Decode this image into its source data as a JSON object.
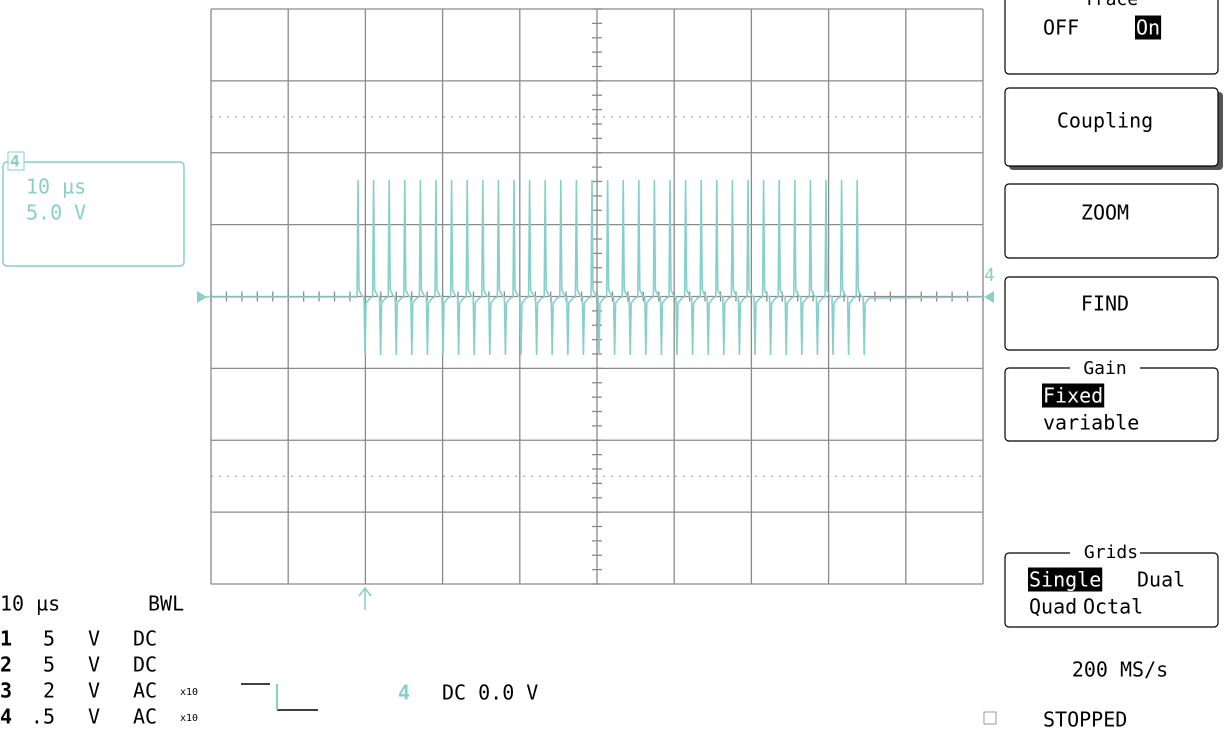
{
  "menu": {
    "trace": {
      "title": "Trace",
      "options": [
        "OFF",
        "On"
      ]
    },
    "coupling": "Coupling",
    "zoom": "ZOOM",
    "find": "FIND",
    "gain": {
      "title": "Gain",
      "options": [
        "Fixed",
        "variable"
      ]
    },
    "grids": {
      "title": "Grids",
      "options": [
        "Single",
        "Dual",
        "Quad",
        "Octal"
      ]
    },
    "sample_rate": "200 MS/s",
    "status": "STOPPED"
  },
  "trace_box": {
    "channel": "4",
    "timebase": "10 µs",
    "volts": "5.0 V"
  },
  "trace_marker": "4",
  "footer": {
    "timebase": "10 µs",
    "bwl": "BWL",
    "channels": [
      [
        "1",
        "5",
        "V",
        "DC"
      ],
      [
        "2",
        "5",
        "V",
        "DC"
      ],
      [
        "3",
        "2",
        "V",
        "AC",
        "x10"
      ],
      [
        "4",
        ".5",
        "V",
        "AC",
        "x10"
      ]
    ],
    "trigger": {
      "channel": "4",
      "setting": "DC 0.0 V"
    }
  }
}
